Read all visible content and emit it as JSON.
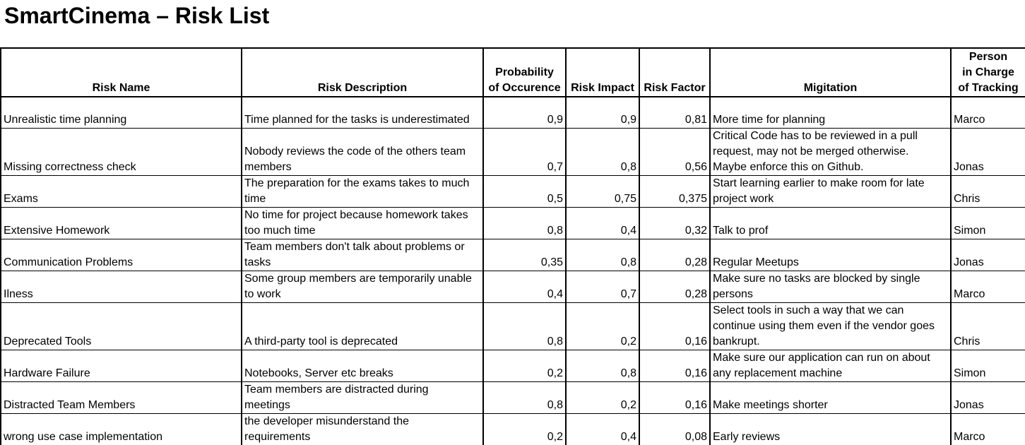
{
  "title": "SmartCinema – Risk List",
  "columns": {
    "name": "Risk Name",
    "description": "Risk Description",
    "probability_1": "Probability",
    "probability_2": "of Occurence",
    "impact": "Risk Impact",
    "factor": "Risk Factor",
    "mitigation": "Migitation",
    "person_1": "Person",
    "person_2": "in Charge",
    "person_3": "of Tracking"
  },
  "rows": [
    {
      "name": "Unrealistic time planning",
      "description": [
        "Time planned for the tasks is underestimated"
      ],
      "probability": "0,9",
      "impact": "0,9",
      "factor": "0,81",
      "mitigation": [
        "More time for planning"
      ],
      "person": "Marco"
    },
    {
      "name": "Missing correctness check",
      "description": [
        "Nobody reviews the code of the others team",
        "members"
      ],
      "probability": "0,7",
      "impact": "0,8",
      "factor": "0,56",
      "mitigation": [
        "Critical Code has to be reviewed in a pull",
        "request, may not be merged otherwise.",
        "Maybe enforce this on Github."
      ],
      "person": "Jonas"
    },
    {
      "name": "Exams",
      "description": [
        "The preparation for the exams takes to much",
        "time"
      ],
      "probability": "0,5",
      "impact": "0,75",
      "factor": "0,375",
      "mitigation": [
        "Start learning earlier to make room for late",
        "project work"
      ],
      "person": "Chris"
    },
    {
      "name": "Extensive Homework",
      "description": [
        "No time for project because homework takes",
        "too much time"
      ],
      "probability": "0,8",
      "impact": "0,4",
      "factor": "0,32",
      "mitigation": [
        "Talk to prof"
      ],
      "person": "Simon"
    },
    {
      "name": "Communication Problems",
      "description": [
        "Team members don't talk about problems or",
        "tasks"
      ],
      "probability": "0,35",
      "impact": "0,8",
      "factor": "0,28",
      "mitigation": [
        "Regular Meetups"
      ],
      "person": "Jonas"
    },
    {
      "name": "Ilness",
      "description": [
        "Some group members are temporarily unable",
        "to work"
      ],
      "probability": "0,4",
      "impact": "0,7",
      "factor": "0,28",
      "mitigation": [
        "Make sure no tasks are blocked by single",
        "persons"
      ],
      "person": "Marco"
    },
    {
      "name": "Deprecated Tools",
      "description": [
        "A third-party tool is deprecated"
      ],
      "probability": "0,8",
      "impact": "0,2",
      "factor": "0,16",
      "mitigation": [
        "Select tools in such a way that we can",
        "continue using them even if the vendor goes",
        "bankrupt."
      ],
      "person": "Chris"
    },
    {
      "name": "Hardware Failure",
      "description": [
        "Notebooks, Server etc breaks"
      ],
      "probability": "0,2",
      "impact": "0,8",
      "factor": "0,16",
      "mitigation": [
        "Make sure our application can run on about",
        "any replacement machine"
      ],
      "person": "Simon"
    },
    {
      "name": "Distracted Team Members",
      "description": [
        "Team members are distracted during",
        "meetings"
      ],
      "probability": "0,8",
      "impact": "0,2",
      "factor": "0,16",
      "mitigation": [
        "Make meetings shorter"
      ],
      "person": "Jonas"
    },
    {
      "name": "wrong use case implementation",
      "description": [
        "the developer misunderstand the",
        "requirements"
      ],
      "probability": "0,2",
      "impact": "0,4",
      "factor": "0,08",
      "mitigation": [
        "Early reviews"
      ],
      "person": "Marco"
    }
  ]
}
